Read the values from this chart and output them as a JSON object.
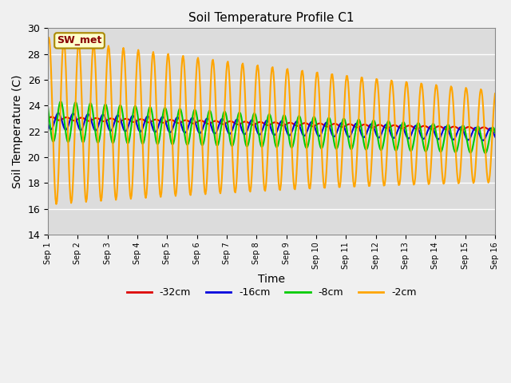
{
  "title": "Soil Temperature Profile C1",
  "xlabel": "Time",
  "ylabel": "Soil Temperature (C)",
  "ylim": [
    14,
    30
  ],
  "xlim_days": 15,
  "bg_color": "#dcdcdc",
  "fig_color": "#f0f0f0",
  "grid_color": "#ffffff",
  "series": {
    "-32cm": {
      "color": "#dd0000",
      "lw": 1.5
    },
    "-16cm": {
      "color": "#0000dd",
      "lw": 1.5
    },
    "-8cm": {
      "color": "#00cc00",
      "lw": 1.5
    },
    "-2cm": {
      "color": "#ffa500",
      "lw": 1.5
    }
  },
  "legend_label": "SW_met",
  "legend_box_color": "#ffffcc",
  "legend_box_edge": "#aa8800",
  "tick_labels": [
    "Sep 1",
    "Sep 2",
    "Sep 3",
    "Sep 4",
    "Sep 5",
    "Sep 6",
    "Sep 7",
    "Sep 8",
    "Sep 9",
    "Sep 10",
    "Sep 11",
    "Sep 12",
    "Sep 13",
    "Sep 14",
    "Sep 15",
    "Sep 16"
  ]
}
